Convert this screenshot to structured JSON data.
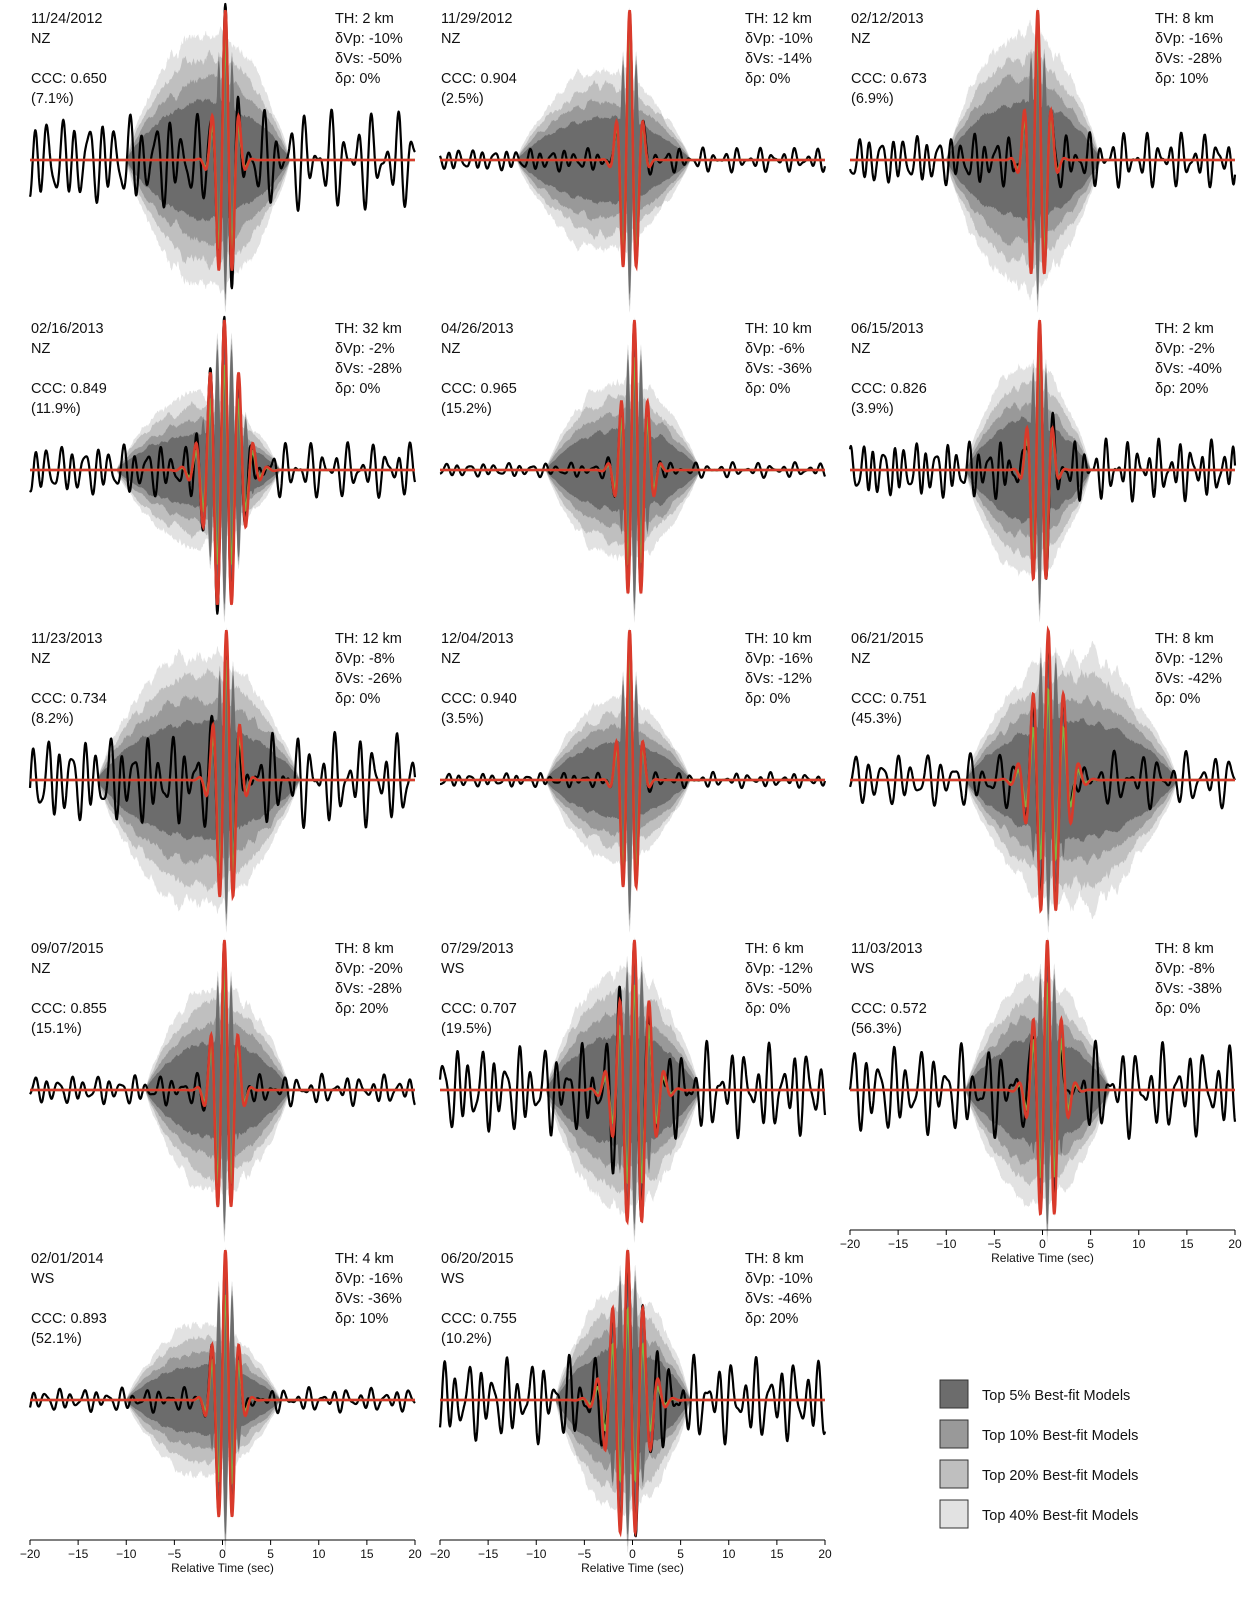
{
  "chart_data": [
    {
      "type": "line",
      "date": "11/24/2012",
      "network": "NZ",
      "ccc": "CCC: 0.650",
      "pct": "(7.1%)",
      "th": "TH: 2 km",
      "dvp": "δVp: -10%",
      "dvs": "δVs: -50%",
      "drho": "δρ: 0%",
      "xlabel": "",
      "x_range": [
        -20,
        20
      ],
      "pulse": {
        "center": 0.3,
        "period": 1.45,
        "width": 0.9,
        "amplitude": 1.0
      },
      "envelope": {
        "start": -10,
        "end": 7,
        "amplitude": 0.85
      },
      "noise": {
        "amplitude": 0.32,
        "period": 1.4
      },
      "green_scale": 0.8
    },
    {
      "type": "line",
      "date": "11/29/2012",
      "network": "NZ",
      "ccc": "CCC: 0.904",
      "pct": "(2.5%)",
      "th": "TH: 12 km",
      "dvp": "δVp: -10%",
      "dvs": "δVs: -14%",
      "drho": "δρ: 0%",
      "xlabel": "",
      "x_range": [
        -20,
        20
      ],
      "pulse": {
        "center": -0.3,
        "period": 1.45,
        "width": 0.85,
        "amplitude": 1.0
      },
      "envelope": {
        "start": -12,
        "end": 6,
        "amplitude": 0.6
      },
      "noise": {
        "amplitude": 0.08,
        "period": 1.2
      },
      "green_scale": 0.9
    },
    {
      "type": "line",
      "date": "02/12/2013",
      "network": "NZ",
      "ccc": "CCC: 0.673",
      "pct": "(6.9%)",
      "th": "TH: 8 km",
      "dvp": "δVp: -16%",
      "dvs": "δVs: -28%",
      "drho": "δρ: 10%",
      "xlabel": "",
      "x_range": [
        -20,
        20
      ],
      "pulse": {
        "center": -0.5,
        "period": 1.45,
        "width": 0.95,
        "amplitude": 1.0
      },
      "envelope": {
        "start": -10,
        "end": 6,
        "amplitude": 0.85
      },
      "noise": {
        "amplitude": 0.18,
        "period": 1.2
      },
      "green_scale": 0.85
    },
    {
      "type": "line",
      "date": "02/16/2013",
      "network": "NZ",
      "ccc": "CCC: 0.849",
      "pct": "(11.9%)",
      "th": "TH: 32 km",
      "dvp": "δVp: -2%",
      "dvs": "δVs: -28%",
      "drho": "δρ: 0%",
      "xlabel": "",
      "x_range": [
        -20,
        20
      ],
      "pulse": {
        "center": 0.2,
        "period": 1.5,
        "width": 1.6,
        "amplitude": 1.0
      },
      "envelope": {
        "start": -11,
        "end": 6,
        "amplitude": 0.5
      },
      "noise": {
        "amplitude": 0.18,
        "period": 1.3
      },
      "green_scale": 0.7
    },
    {
      "type": "line",
      "date": "04/26/2013",
      "network": "NZ",
      "ccc": "CCC: 0.965",
      "pct": "(15.2%)",
      "th": "TH: 10 km",
      "dvp": "δVp: -6%",
      "dvs": "δVs: -36%",
      "drho": "δρ: 0%",
      "xlabel": "",
      "x_range": [
        -20,
        20
      ],
      "pulse": {
        "center": 0.2,
        "period": 1.4,
        "width": 1.1,
        "amplitude": 1.0
      },
      "envelope": {
        "start": -9,
        "end": 7,
        "amplitude": 0.6
      },
      "noise": {
        "amplitude": 0.05,
        "period": 1.3
      },
      "green_scale": 0.75
    },
    {
      "type": "line",
      "date": "06/15/2013",
      "network": "NZ",
      "ccc": "CCC: 0.826",
      "pct": "(3.9%)",
      "th": "TH: 2 km",
      "dvp": "δVp: -2%",
      "dvs": "δVs: -40%",
      "drho": "δρ: 20%",
      "xlabel": "",
      "x_range": [
        -20,
        20
      ],
      "pulse": {
        "center": -0.3,
        "period": 1.4,
        "width": 0.85,
        "amplitude": 1.0
      },
      "envelope": {
        "start": -8,
        "end": 5,
        "amplitude": 0.7
      },
      "noise": {
        "amplitude": 0.2,
        "period": 1.1
      },
      "green_scale": 0.85
    },
    {
      "type": "line",
      "date": "11/23/2013",
      "network": "NZ",
      "ccc": "CCC: 0.734",
      "pct": "(8.2%)",
      "th": "TH: 12 km",
      "dvp": "δVp: -8%",
      "dvs": "δVs: -26%",
      "drho": "δρ: 0%",
      "xlabel": "",
      "x_range": [
        -20,
        20
      ],
      "pulse": {
        "center": 0.4,
        "period": 1.45,
        "width": 1.0,
        "amplitude": 1.0
      },
      "envelope": {
        "start": -13,
        "end": 8,
        "amplitude": 0.85
      },
      "noise": {
        "amplitude": 0.3,
        "period": 1.3
      },
      "green_scale": 0.8
    },
    {
      "type": "line",
      "date": "12/04/2013",
      "network": "NZ",
      "ccc": "CCC: 0.940",
      "pct": "(3.5%)",
      "th": "TH: 10 km",
      "dvp": "δVp: -16%",
      "dvs": "δVs: -12%",
      "drho": "δρ: 0%",
      "xlabel": "",
      "x_range": [
        -20,
        20
      ],
      "pulse": {
        "center": -0.3,
        "period": 1.45,
        "width": 0.85,
        "amplitude": 1.0
      },
      "envelope": {
        "start": -9,
        "end": 6,
        "amplitude": 0.55
      },
      "noise": {
        "amplitude": 0.05,
        "period": 1.2
      },
      "green_scale": 0.85
    },
    {
      "type": "line",
      "date": "06/21/2015",
      "network": "NZ",
      "ccc": "CCC: 0.751",
      "pct": "(45.3%)",
      "th": "TH: 8 km",
      "dvp": "δVp: -12%",
      "dvs": "δVs: -42%",
      "drho": "δρ: 0%",
      "xlabel": "",
      "x_range": [
        -20,
        20
      ],
      "pulse": {
        "center": 0.6,
        "period": 1.6,
        "width": 1.5,
        "amplitude": 1.0
      },
      "envelope": {
        "start": -8,
        "end": 14,
        "amplitude": 0.85
      },
      "noise": {
        "amplitude": 0.18,
        "period": 1.5
      },
      "green_scale": 0.6
    },
    {
      "type": "line",
      "date": "09/07/2015",
      "network": "NZ",
      "ccc": "CCC: 0.855",
      "pct": "(15.1%)",
      "th": "TH: 8 km",
      "dvp": "δVp: -20%",
      "dvs": "δVs: -28%",
      "drho": "δρ: 20%",
      "xlabel": "",
      "x_range": [
        -20,
        20
      ],
      "pulse": {
        "center": 0.2,
        "period": 1.45,
        "width": 1.0,
        "amplitude": 1.0
      },
      "envelope": {
        "start": -8,
        "end": 7,
        "amplitude": 0.7
      },
      "noise": {
        "amplitude": 0.1,
        "period": 1.3
      },
      "green_scale": 0.8
    },
    {
      "type": "line",
      "date": "07/29/2013",
      "network": "WS",
      "ccc": "CCC: 0.707",
      "pct": "(19.5%)",
      "th": "TH: 6 km",
      "dvp": "δVp: -12%",
      "dvs": "δVs: -50%",
      "drho": "δρ: 0%",
      "xlabel": "",
      "x_range": [
        -20,
        20
      ],
      "pulse": {
        "center": 0.2,
        "period": 1.55,
        "width": 1.5,
        "amplitude": 1.0
      },
      "envelope": {
        "start": -9,
        "end": 7,
        "amplitude": 0.8
      },
      "noise": {
        "amplitude": 0.3,
        "period": 1.3
      },
      "green_scale": 0.7
    },
    {
      "type": "line",
      "date": "11/03/2013",
      "network": "WS",
      "ccc": "CCC: 0.572",
      "pct": "(56.3%)",
      "th": "TH: 8 km",
      "dvp": "δVp: -8%",
      "dvs": "δVs: -38%",
      "drho": "δρ: 0%",
      "xlabel": "Relative Time (sec)",
      "x_range": [
        -20,
        20
      ],
      "x_ticks": [
        -20,
        -15,
        -10,
        -5,
        0,
        5,
        10,
        15,
        20
      ],
      "pulse": {
        "center": 0.5,
        "period": 1.5,
        "width": 1.2,
        "amplitude": 1.0
      },
      "envelope": {
        "start": -8,
        "end": 7,
        "amplitude": 0.75
      },
      "noise": {
        "amplitude": 0.3,
        "period": 1.4
      },
      "green_scale": 0.7
    },
    {
      "type": "line",
      "date": "02/01/2014",
      "network": "WS",
      "ccc": "CCC: 0.893",
      "pct": "(52.1%)",
      "th": "TH: 4 km",
      "dvp": "δVp: -16%",
      "dvs": "δVs: -36%",
      "drho": "δρ: 10%",
      "xlabel": "Relative Time (sec)",
      "x_range": [
        -20,
        20
      ],
      "x_ticks": [
        -20,
        -15,
        -10,
        -5,
        0,
        5,
        10,
        15,
        20
      ],
      "pulse": {
        "center": 0.3,
        "period": 1.45,
        "width": 1.0,
        "amplitude": 1.0
      },
      "envelope": {
        "start": -10,
        "end": 6,
        "amplitude": 0.5
      },
      "noise": {
        "amplitude": 0.08,
        "period": 1.3
      },
      "green_scale": 0.7
    },
    {
      "type": "line",
      "date": "06/20/2015",
      "network": "WS",
      "ccc": "CCC: 0.755",
      "pct": "(10.2%)",
      "th": "TH: 8 km",
      "dvp": "δVp: -10%",
      "dvs": "δVs: -46%",
      "drho": "δρ: 20%",
      "xlabel": "Relative Time (sec)",
      "x_range": [
        -20,
        20
      ],
      "x_ticks": [
        -20,
        -15,
        -10,
        -5,
        0,
        5,
        10,
        15,
        20
      ],
      "pulse": {
        "center": -0.5,
        "period": 1.6,
        "width": 1.6,
        "amplitude": 1.0
      },
      "envelope": {
        "start": -8,
        "end": 6,
        "amplitude": 0.75
      },
      "noise": {
        "amplitude": 0.28,
        "period": 1.3
      },
      "green_scale": 0.6
    }
  ],
  "legend": {
    "items": [
      {
        "label": "Top 5% Best-fit Models",
        "color": "#6c6c6c"
      },
      {
        "label": "Top 10% Best-fit Models",
        "color": "#999999"
      },
      {
        "label": "Top 20% Best-fit Models",
        "color": "#bfbfbf"
      },
      {
        "label": "Top 40% Best-fit Models",
        "color": "#e2e2e2"
      }
    ]
  },
  "colors": {
    "observed": "#000000",
    "synthetic": "#d93a2b",
    "synthetic_green": "#7ab648",
    "band5": "#6c6c6c",
    "band10": "#999999",
    "band20": "#bfbfbf",
    "band40": "#e2e2e2"
  }
}
